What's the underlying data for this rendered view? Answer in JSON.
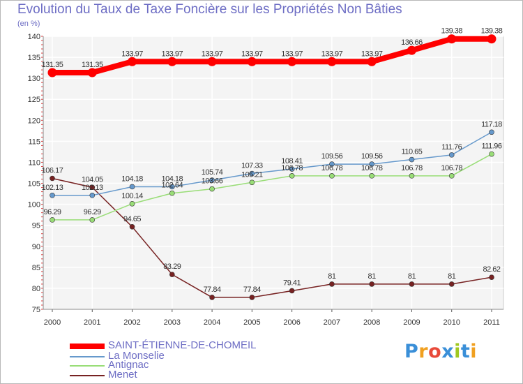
{
  "chart_data": {
    "type": "line",
    "title": "Evolution du Taux de Taxe Foncière sur les Propriétés Non Bâties",
    "ylabel": "(en %)",
    "xlabel": "",
    "categories": [
      "2000",
      "2001",
      "2002",
      "2003",
      "2004",
      "2005",
      "2006",
      "2007",
      "2008",
      "2009",
      "2010",
      "2011"
    ],
    "ylim": [
      75,
      140
    ],
    "yticks": [
      "75",
      "80",
      "85",
      "90",
      "95",
      "100",
      "105",
      "110",
      "115",
      "120",
      "125",
      "130",
      "135",
      "140"
    ],
    "grid": true,
    "series": [
      {
        "name": "SAINT-ÉTIENNE-DE-CHOMEIL",
        "color": "#ff0000",
        "values": [
          131.35,
          131.35,
          133.97,
          133.97,
          133.97,
          133.97,
          133.97,
          133.97,
          133.97,
          136.66,
          139.38,
          139.38
        ],
        "labels": [
          "131.35",
          "131.35",
          "133.97",
          "133.97",
          "133.97",
          "133.97",
          "133.97",
          "133.97",
          "133.97",
          "136.66",
          "139.38",
          "139.38"
        ]
      },
      {
        "name": "La Monselie",
        "color": "#6699cc",
        "values": [
          102.13,
          102.13,
          104.18,
          104.18,
          105.74,
          107.33,
          108.41,
          109.56,
          109.56,
          110.65,
          111.76,
          117.18
        ],
        "labels": [
          "102.13",
          "102.13",
          "104.18",
          "104.18",
          "105.74",
          "107.33",
          "108.41",
          "109.56",
          "109.56",
          "110.65",
          "111.76",
          "117.18"
        ]
      },
      {
        "name": "Antignac",
        "color": "#99dd77",
        "values": [
          96.29,
          96.29,
          100.14,
          102.64,
          103.66,
          105.21,
          106.78,
          106.78,
          106.78,
          106.78,
          106.78,
          111.96
        ],
        "labels": [
          "96.29",
          "96.29",
          "100.14",
          "102.64",
          "103.66",
          "105.21",
          "106.78",
          "106.78",
          "106.78",
          "106.78",
          "106.78",
          "111.96"
        ]
      },
      {
        "name": "Menet",
        "color": "#772222",
        "values": [
          106.17,
          104.05,
          94.65,
          83.29,
          77.84,
          77.84,
          79.41,
          81,
          81,
          81,
          81,
          82.62
        ],
        "labels": [
          "106.17",
          "104.05",
          "94.65",
          "83.29",
          "77.84",
          "77.84",
          "79.41",
          "81",
          "81",
          "81",
          "81",
          "82.62"
        ]
      }
    ]
  },
  "logo": {
    "letters": [
      "P",
      "r",
      "o",
      "x",
      "i",
      "t",
      "i"
    ],
    "colors": [
      "#3a8fd8",
      "#f0a020",
      "#e84a3a",
      "#3a8fd8",
      "#a0c820",
      "#3a8fd8",
      "#f0a020"
    ]
  }
}
